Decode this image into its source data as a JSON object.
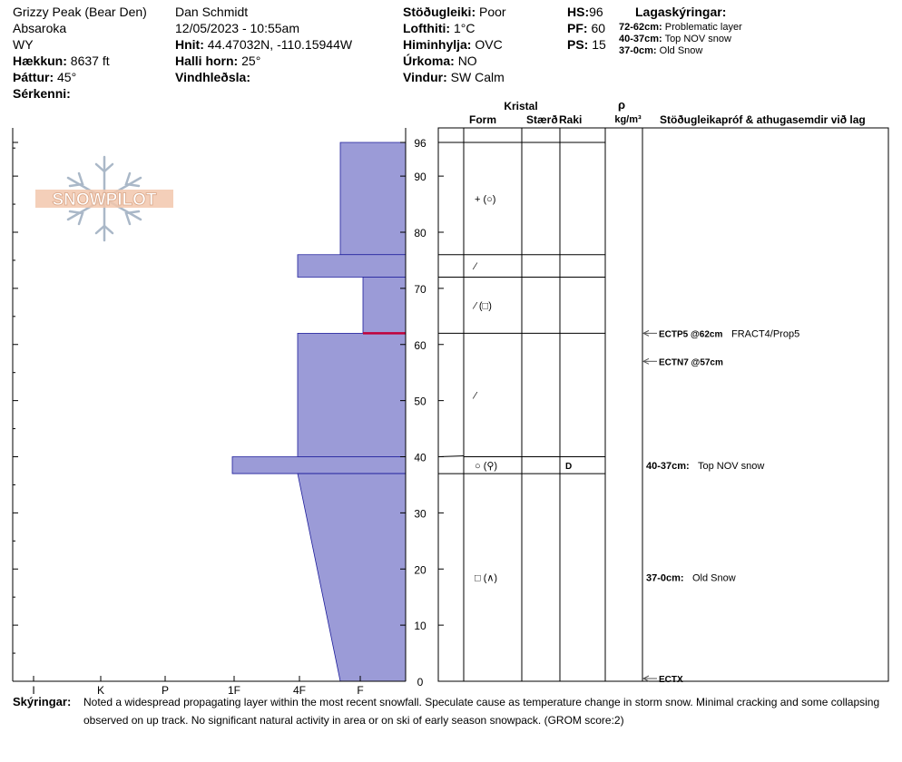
{
  "header": {
    "location": "Grizzy Peak (Bear Den)",
    "range": "Absaroka",
    "state": "WY",
    "elevation_label": "Hækkun:",
    "elevation_value": "8637 ft",
    "aspect_label": "Þáttur:",
    "aspect_value": "45°",
    "features_label": "Sérkenni:",
    "observer": "Dan Schmidt",
    "datetime": "12/05/2023 - 10:55am",
    "coords_label": "Hnit:",
    "coords_value": "44.47032N, -110.15944W",
    "slope_label": "Halli horn:",
    "slope_value": "25°",
    "wind_loading_label": "Vindhleðsla:",
    "stability_label": "Stöðugleiki:",
    "stability_value": "Poor",
    "air_temp_label": "Lofthiti:",
    "air_temp_value": "1°C",
    "sky_label": "Himinhylja:",
    "sky_value": "OVC",
    "precip_label": "Úrkoma:",
    "precip_value": "NO",
    "wind_label": "Vindur:",
    "wind_value": "SW Calm",
    "hs_label": "HS:",
    "hs_value": "96",
    "pf_label": "PF:",
    "pf_value": "60",
    "ps_label": "PS:",
    "ps_value": "15",
    "legend_title": "Lagaskýringar:",
    "legend_items": [
      {
        "range": "72-62cm:",
        "desc": "Problematic layer"
      },
      {
        "range": "40-37cm:",
        "desc": "Top NOV snow"
      },
      {
        "range": "37-0cm:",
        "desc": "Old Snow"
      }
    ]
  },
  "logo": {
    "text": "SNOWPILOT"
  },
  "columns": {
    "crystal": "Kristal",
    "form": "Form",
    "size": "Stærð",
    "moisture": "Raki",
    "rho": "ρ",
    "density_unit": "kg/m³",
    "tests": "Stöðugleikapróf & athugasemdir við lag"
  },
  "layers": [
    {
      "top": 96,
      "bottom": 76,
      "form": "+ (○)"
    },
    {
      "top": 76,
      "bottom": 72,
      "form": "⁄"
    },
    {
      "top": 72,
      "bottom": 62,
      "form": "⁄ (□)"
    },
    {
      "top": 62,
      "bottom": 40,
      "form": "⁄"
    },
    {
      "top": 40,
      "bottom": 37,
      "form": "○ (⚲)",
      "moisture": "D"
    },
    {
      "top": 37,
      "bottom": 0,
      "form": "□ (∧)"
    }
  ],
  "tests": [
    {
      "height": 62,
      "name": "ECTP5 @62cm",
      "note": "FRACT4/Prop5"
    },
    {
      "height": 57,
      "name": "ECTN7 @57cm",
      "note": ""
    },
    {
      "height": 0,
      "name": "ECTX",
      "note": ""
    }
  ],
  "layer_comments": [
    {
      "height": 38.5,
      "range": "40-37cm:",
      "desc": "Top NOV snow"
    },
    {
      "height": 18.5,
      "range": "37-0cm:",
      "desc": "Old Snow"
    }
  ],
  "chart_data": {
    "type": "area",
    "title": "",
    "x_axis": {
      "label": "",
      "ticks": [
        "I",
        "K",
        "P",
        "1F",
        "4F",
        "F"
      ],
      "scale": "hand hardness (reversed)"
    },
    "y_axis": {
      "label": "",
      "ylim": [
        0,
        96
      ],
      "ticks": [
        0,
        10,
        20,
        30,
        40,
        50,
        60,
        70,
        80,
        90,
        96
      ],
      "unit": "cm"
    },
    "hardness_profile": [
      {
        "top": 96,
        "bottom": 76,
        "hardness_top": "F+",
        "hardness_bottom": "F+"
      },
      {
        "top": 76,
        "bottom": 72,
        "hardness_top": "4F+",
        "hardness_bottom": "4F+"
      },
      {
        "top": 72,
        "bottom": 62,
        "hardness_top": "F-",
        "hardness_bottom": "F-"
      },
      {
        "top": 62,
        "bottom": 40,
        "hardness_top": "4F",
        "hardness_bottom": "4F"
      },
      {
        "top": 40,
        "bottom": 37,
        "hardness_top": "1F",
        "hardness_bottom": "1F"
      },
      {
        "top": 37,
        "bottom": 0,
        "hardness_top": "4F",
        "hardness_bottom": "F+"
      }
    ],
    "marked_interface_cm": 62,
    "fill_color": "#9b9bd7",
    "edge_color": "#1d1d9b",
    "marker_color": "#c0003a"
  },
  "remarks": {
    "label": "Skýringar:",
    "text": "Noted a widespread propagating layer within the most recent snowfall. Speculate cause as temperature change in storm snow.  Minimal cracking and some collapsing observed on up track. No significant natural activity in area or on ski of early season snowpack. (GROM score:2)"
  }
}
